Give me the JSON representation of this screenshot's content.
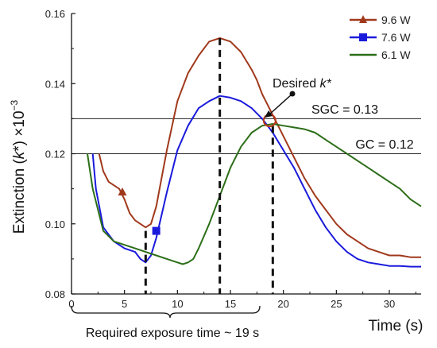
{
  "chart_data": {
    "type": "line",
    "xlabel": "Time (s)",
    "ylabel": "Extinction (k*) ×10⁻³",
    "ylabel_parts": {
      "pre": "Extinction (",
      "k": "k",
      "star": "*",
      "post": ") ×10",
      "exp": "−3"
    },
    "xlim": [
      0,
      33
    ],
    "ylim": [
      0.08,
      0.16
    ],
    "xticks": [
      0,
      5,
      10,
      15,
      20,
      25,
      30
    ],
    "yticks": [
      0.08,
      0.1,
      0.12,
      0.14,
      0.16
    ],
    "ytick_labels": [
      "0.08",
      "0.10",
      "0.12",
      "0.14",
      "0.16"
    ],
    "grid": false,
    "legend_position": "top-right",
    "series": [
      {
        "name": "9.6 W",
        "color": "#a0391c",
        "marker": "triangle",
        "marker_point": [
          4.8,
          0.109
        ],
        "x": [
          2.6,
          3.0,
          3.5,
          4.0,
          4.5,
          5.0,
          5.5,
          6.0,
          6.5,
          7.0,
          7.5,
          8.0,
          8.5,
          9.0,
          10,
          11,
          12,
          13,
          14,
          15,
          16,
          17,
          17.5,
          18,
          18.5,
          19,
          19.5,
          20,
          21,
          22,
          23,
          24,
          25,
          26,
          27,
          28,
          29,
          30,
          31,
          32,
          33
        ],
        "y": [
          0.12,
          0.115,
          0.112,
          0.111,
          0.11,
          0.107,
          0.103,
          0.101,
          0.1,
          0.099,
          0.1,
          0.105,
          0.113,
          0.121,
          0.135,
          0.143,
          0.148,
          0.152,
          0.153,
          0.152,
          0.149,
          0.144,
          0.141,
          0.137,
          0.134,
          0.131,
          0.128,
          0.125,
          0.119,
          0.113,
          0.108,
          0.104,
          0.1,
          0.097,
          0.095,
          0.093,
          0.092,
          0.091,
          0.091,
          0.0905,
          0.0905
        ]
      },
      {
        "name": "7.6 W",
        "color": "#1a1adc",
        "marker": "square",
        "marker_point": [
          8.0,
          0.098
        ],
        "x": [
          2.0,
          2.3,
          3.0,
          4.0,
          5.0,
          6.0,
          6.5,
          7.0,
          7.5,
          8.0,
          9.0,
          10,
          11,
          12,
          13,
          14,
          15,
          16,
          17,
          18,
          18.5,
          19,
          20,
          21,
          22,
          23,
          24,
          25,
          26,
          27,
          28,
          29,
          30,
          31,
          32,
          33
        ],
        "y": [
          0.12,
          0.11,
          0.099,
          0.095,
          0.093,
          0.092,
          0.09,
          0.089,
          0.091,
          0.096,
          0.109,
          0.121,
          0.128,
          0.133,
          0.135,
          0.1365,
          0.136,
          0.135,
          0.133,
          0.13,
          0.128,
          0.126,
          0.121,
          0.116,
          0.11,
          0.104,
          0.099,
          0.095,
          0.092,
          0.09,
          0.089,
          0.0885,
          0.088,
          0.088,
          0.0878,
          0.0878
        ]
      },
      {
        "name": "6.1 W",
        "color": "#2c6e18",
        "marker": "none",
        "x": [
          1.5,
          2.0,
          3.0,
          4.0,
          5.0,
          6.0,
          7.0,
          8.0,
          9.0,
          10,
          10.5,
          11,
          11.5,
          12,
          13,
          14,
          15,
          16,
          17,
          18,
          19,
          20,
          21,
          22,
          23,
          24,
          25,
          26,
          27,
          28,
          29,
          30,
          31,
          32,
          33
        ],
        "y": [
          0.12,
          0.11,
          0.098,
          0.095,
          0.094,
          0.093,
          0.092,
          0.091,
          0.09,
          0.089,
          0.0885,
          0.089,
          0.09,
          0.093,
          0.1,
          0.108,
          0.116,
          0.122,
          0.126,
          0.128,
          0.1285,
          0.128,
          0.1275,
          0.127,
          0.126,
          0.124,
          0.122,
          0.12,
          0.118,
          0.116,
          0.114,
          0.112,
          0.11,
          0.107,
          0.105
        ]
      }
    ],
    "reference_lines": [
      {
        "label": "SGC = 0.13",
        "y": 0.13
      },
      {
        "label": "GC = 0.12",
        "y": 0.12
      }
    ],
    "vertical_markers": [
      {
        "x": 7.0,
        "y_top": 0.098
      },
      {
        "x": 14.0,
        "y_top": 0.153
      },
      {
        "x": 19.0,
        "y_top": 0.128
      }
    ],
    "desired_point": {
      "x": 18.7,
      "y": 0.1295
    },
    "annotations": {
      "desired_pre": "Desired ",
      "desired_k": "k*",
      "exposure": "Required exposure time ~ 19 s"
    }
  }
}
